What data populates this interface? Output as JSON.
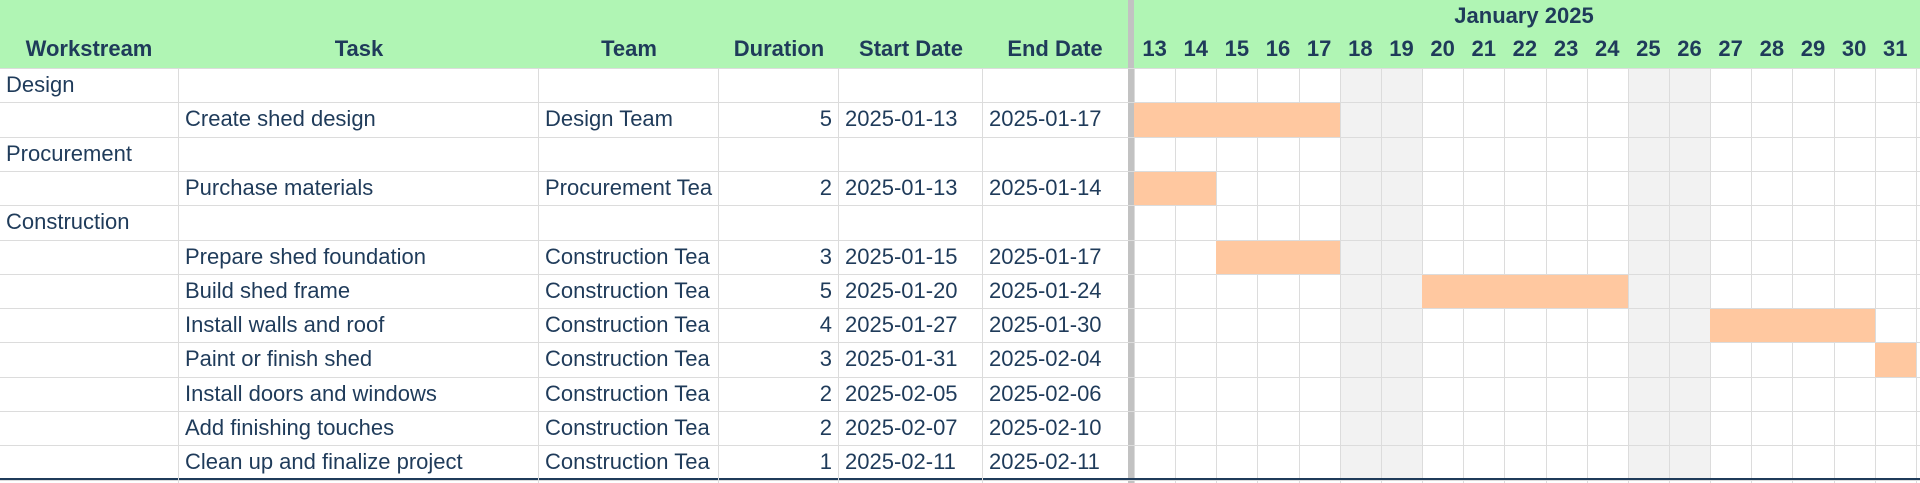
{
  "colors": {
    "header_bg": "#b0f5b4",
    "bar": "#ffc8a0",
    "weekend": "#f2f2f2",
    "text": "#1f3b5a"
  },
  "columns": {
    "workstream": "Workstream",
    "task": "Task",
    "team": "Team",
    "duration": "Duration",
    "start": "Start Date",
    "end": "End Date"
  },
  "timeline": {
    "month_label": "January 2025",
    "days": [
      13,
      14,
      15,
      16,
      17,
      18,
      19,
      20,
      21,
      22,
      23,
      24,
      25,
      26,
      27,
      28,
      29,
      30,
      31
    ],
    "weekend_days": [
      18,
      19,
      25,
      26
    ]
  },
  "rows": [
    {
      "type": "group",
      "workstream": "Design"
    },
    {
      "type": "task",
      "task": "Create shed design",
      "team": "Design Team",
      "duration": "5",
      "start": "2025-01-13",
      "end": "2025-01-17"
    },
    {
      "type": "group",
      "workstream": "Procurement"
    },
    {
      "type": "task",
      "task": "Purchase materials",
      "team": "Procurement Tea",
      "duration": "2",
      "start": "2025-01-13",
      "end": "2025-01-14"
    },
    {
      "type": "group",
      "workstream": "Construction"
    },
    {
      "type": "task",
      "task": "Prepare shed foundation",
      "team": "Construction Tea",
      "duration": "3",
      "start": "2025-01-15",
      "end": "2025-01-17"
    },
    {
      "type": "task",
      "task": "Build shed frame",
      "team": "Construction Tea",
      "duration": "5",
      "start": "2025-01-20",
      "end": "2025-01-24"
    },
    {
      "type": "task",
      "task": "Install walls and roof",
      "team": "Construction Tea",
      "duration": "4",
      "start": "2025-01-27",
      "end": "2025-01-30"
    },
    {
      "type": "task",
      "task": "Paint or finish shed",
      "team": "Construction Tea",
      "duration": "3",
      "start": "2025-01-31",
      "end": "2025-02-04"
    },
    {
      "type": "task",
      "task": "Install doors and windows",
      "team": "Construction Tea",
      "duration": "2",
      "start": "2025-02-05",
      "end": "2025-02-06"
    },
    {
      "type": "task",
      "task": "Add finishing touches",
      "team": "Construction Tea",
      "duration": "2",
      "start": "2025-02-07",
      "end": "2025-02-10"
    },
    {
      "type": "task",
      "task": "Clean up and finalize project",
      "team": "Construction Tea",
      "duration": "1",
      "start": "2025-02-11",
      "end": "2025-02-11"
    }
  ]
}
